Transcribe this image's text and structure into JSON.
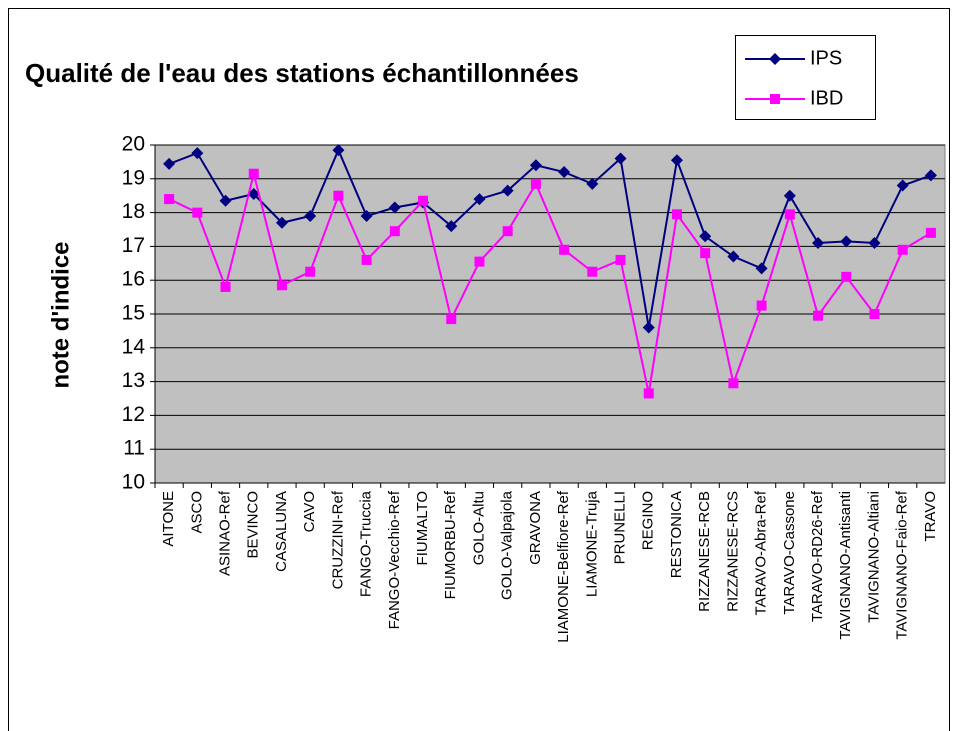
{
  "chart_data": {
    "type": "line",
    "title": "Qualité de l'eau des stations échantillonnées",
    "y_label": "note d'indice",
    "categories": [
      "AITONE",
      "ASCO",
      "ASINAO-Ref",
      "BEVINCO",
      "CASALUNA",
      "CAVO",
      "CRUZZINI-Ref",
      "FANGO-Truccia",
      "FANGO-Vecchio-Ref",
      "FIUMALTO",
      "FIUMORBU-Ref",
      "GOLO-Altu",
      "GOLO-Valpajola",
      "GRAVONA",
      "LIAMONE-Belfiore-Ref",
      "LIAMONE-Truja",
      "PRUNELLI",
      "REGINO",
      "RESTONICA",
      "RIZZANESE-RCB",
      "RIZZANESE-RCS",
      "TARAVO-Abra-Ref",
      "TARAVO-Cassone",
      "TARAVO-RD26-Ref",
      "TAVIGNANO-Antisanti",
      "TAVIGNANO-Altiani",
      "TAVIGNANO-Faio-Ref",
      "TRAVO"
    ],
    "series": [
      {
        "name": "IPS",
        "color": "#000080",
        "marker": "diamond",
        "values": [
          19.44,
          19.76,
          18.35,
          18.55,
          17.7,
          17.9,
          19.85,
          17.9,
          18.15,
          18.3,
          17.6,
          18.4,
          18.65,
          19.4,
          19.2,
          18.85,
          19.6,
          14.6,
          19.55,
          17.3,
          16.7,
          16.35,
          18.5,
          17.1,
          17.15,
          17.1,
          18.8,
          19.1
        ]
      },
      {
        "name": "IBD",
        "color": "#ff00ff",
        "marker": "square",
        "values": [
          18.4,
          18.0,
          15.8,
          19.15,
          15.85,
          16.25,
          18.5,
          16.6,
          17.45,
          18.35,
          14.85,
          16.55,
          17.45,
          18.85,
          16.9,
          16.25,
          16.6,
          12.65,
          17.95,
          16.8,
          12.95,
          15.25,
          17.95,
          14.95,
          16.1,
          15.0,
          16.9,
          17.4
        ]
      }
    ],
    "ylim": [
      10,
      20
    ],
    "yticks": [
      10,
      11,
      12,
      13,
      14,
      15,
      16,
      17,
      18,
      19,
      20
    ],
    "grid": true,
    "legend": "top-right"
  }
}
